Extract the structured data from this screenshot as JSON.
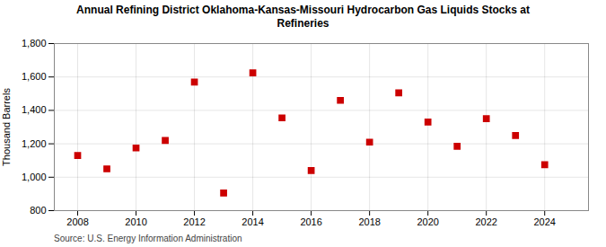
{
  "chart_data": {
    "type": "scatter",
    "title": "Annual Refining District Oklahoma-Kansas-Missouri Hydrocarbon Gas Liquids Stocks at\nRefineries",
    "ylabel": "Thousand Barrels",
    "annotations": [
      "Source: U.S. Energy Information Administration"
    ],
    "x": [
      2008,
      2009,
      2010,
      2011,
      2012,
      2013,
      2014,
      2015,
      2016,
      2017,
      2018,
      2019,
      2020,
      2021,
      2022,
      2023,
      2024
    ],
    "values": [
      1130,
      1050,
      1175,
      1220,
      1570,
      905,
      1625,
      1355,
      1040,
      1460,
      1210,
      1505,
      1330,
      1185,
      1350,
      1250,
      1075
    ],
    "color": "#cc0000",
    "marker": "square",
    "xlim": [
      2007.2,
      2025.5
    ],
    "xticks": [
      2008,
      2010,
      2012,
      2014,
      2016,
      2018,
      2020,
      2022,
      2024
    ],
    "ylim": [
      800,
      1800
    ],
    "yticks": [
      800,
      {
        "value": 1000,
        "label": "1,000"
      },
      {
        "value": 1200,
        "label": "1,200"
      },
      {
        "value": 1400,
        "label": "1,400"
      },
      {
        "value": 1600,
        "label": "1,600"
      },
      {
        "value": 1800,
        "label": "1,800"
      }
    ],
    "grid": true
  }
}
